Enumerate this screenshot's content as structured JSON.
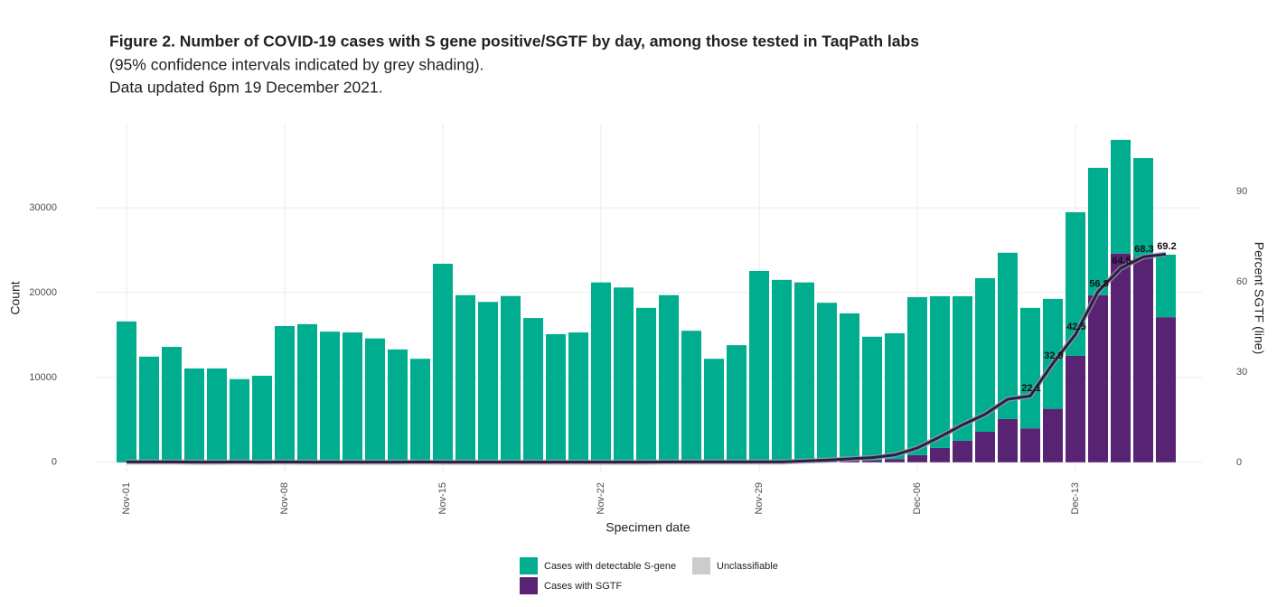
{
  "chart_data": {
    "type": "bar",
    "title": "Figure 2. Number of COVID-19 cases with S gene positive/SGTF by day, among those tested in TaqPath labs",
    "subtitle": [
      "(95% confidence intervals indicated by grey shading).",
      "Data updated 6pm 19 December 2021."
    ],
    "x_label": "Specimen date",
    "y_label": "Count",
    "y2_label": "Percent SGTF (line)",
    "stacked": true,
    "grid": true,
    "legend": "bottom",
    "categories": [
      "Nov-01",
      null,
      null,
      null,
      null,
      null,
      null,
      "Nov-08",
      null,
      null,
      null,
      null,
      null,
      null,
      "Nov-15",
      null,
      null,
      null,
      null,
      null,
      null,
      "Nov-22",
      null,
      null,
      null,
      null,
      null,
      null,
      "Nov-29",
      null,
      null,
      null,
      null,
      null,
      null,
      "Dec-06",
      null,
      null,
      null,
      null,
      null,
      null,
      "Dec-13",
      null,
      null,
      null,
      null
    ],
    "ylim": [
      -1300,
      39900
    ],
    "yticks": [
      0,
      10000,
      20000,
      30000
    ],
    "y2lim": [
      -3.6,
      112.5
    ],
    "y2ticks": [
      0,
      30,
      60,
      90
    ],
    "series": [
      {
        "name": "Cases with detectable S-gene",
        "color": "#00ad8e",
        "values": [
          16570,
          12430,
          13580,
          11045,
          11045,
          9785,
          10185,
          16035,
          16255,
          15380,
          15280,
          14580,
          13280,
          12180,
          23370,
          19675,
          18875,
          19575,
          16975,
          15080,
          15280,
          21170,
          20570,
          18175,
          19670,
          15475,
          12180,
          13775,
          22510,
          21450,
          21100,
          18650,
          17340,
          14560,
          14820,
          18620,
          17870,
          17020,
          18100,
          19600,
          14200,
          12960,
          16920,
          15000,
          13400,
          11700,
          7370
        ]
      },
      {
        "name": "Unclassifiable",
        "color": "#cccccc",
        "values": [
          0,
          0,
          0,
          0,
          0,
          0,
          0,
          0,
          0,
          0,
          0,
          0,
          0,
          0,
          0,
          0,
          0,
          0,
          0,
          0,
          0,
          0,
          0,
          0,
          0,
          0,
          0,
          0,
          0,
          0,
          0,
          0,
          0,
          0,
          0,
          0,
          0,
          0,
          0,
          0,
          0,
          0,
          0,
          0,
          0,
          0,
          0
        ]
      },
      {
        "name": "Cases with SGTF",
        "color": "#592373",
        "values": [
          30,
          20,
          20,
          15,
          15,
          15,
          15,
          25,
          25,
          20,
          20,
          20,
          20,
          20,
          30,
          25,
          25,
          25,
          25,
          20,
          20,
          30,
          30,
          25,
          30,
          25,
          20,
          25,
          40,
          50,
          100,
          150,
          210,
          240,
          380,
          850,
          1700,
          2550,
          3600,
          5100,
          4000,
          6300,
          12550,
          19700,
          24600,
          24150,
          17100
        ]
      }
    ],
    "line_series": {
      "color": "#2b1d4d",
      "axis": "y2",
      "values": [
        0.2,
        0.2,
        0.2,
        0.1,
        0.1,
        0.2,
        0.1,
        0.2,
        0.1,
        0.1,
        0.1,
        0.1,
        0.1,
        0.2,
        0.1,
        0.1,
        0.1,
        0.1,
        0.1,
        0.1,
        0.1,
        0.1,
        0.1,
        0.1,
        0.2,
        0.2,
        0.2,
        0.2,
        0.2,
        0.2,
        0.5,
        0.8,
        1.2,
        1.6,
        2.5,
        4.8,
        8.5,
        12.5,
        16,
        21,
        22.1,
        32.9,
        42.5,
        56.8,
        64.5,
        68.3,
        69.2
      ],
      "value_labels": [
        null,
        null,
        null,
        null,
        null,
        null,
        null,
        null,
        null,
        null,
        null,
        null,
        null,
        null,
        null,
        null,
        null,
        null,
        null,
        null,
        null,
        null,
        null,
        null,
        null,
        null,
        null,
        null,
        null,
        null,
        null,
        null,
        null,
        null,
        null,
        null,
        null,
        null,
        null,
        null,
        "22.1",
        "32.9",
        "42.5",
        "56.8",
        "64.5",
        "68.3",
        "69.2"
      ]
    }
  }
}
